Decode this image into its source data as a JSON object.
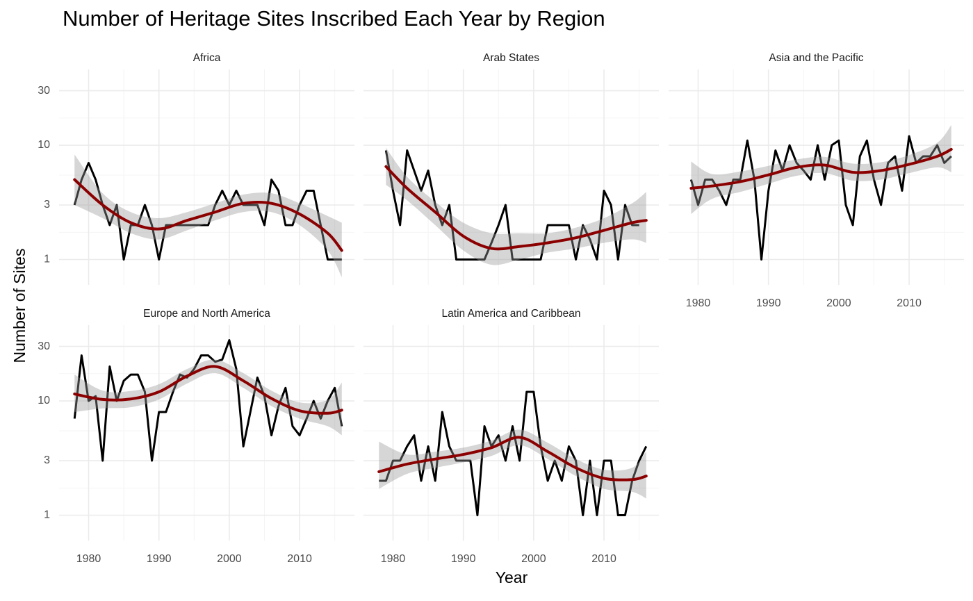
{
  "chart_data": {
    "type": "line",
    "title": "Number of Heritage Sites Inscribed Each Year by Region",
    "x_label": "Year",
    "y_label": "Number of Sites",
    "log_scale": true,
    "grid": true,
    "xlim": [
      1975.8,
      2017.8
    ],
    "xticks": [
      1980,
      1990,
      2000,
      2010
    ],
    "ylim": [
      0.6,
      46
    ],
    "yticks": [
      1,
      3,
      10,
      30
    ],
    "line_color": "#000000",
    "smooth_color": "#8b0000",
    "band_color": "#999999",
    "facets": [
      {
        "title": "Africa",
        "x": [
          1978,
          1979,
          1980,
          1981,
          1982,
          1983,
          1984,
          1985,
          1986,
          1987,
          1988,
          1989,
          1990,
          1991,
          1992,
          1993,
          1994,
          1995,
          1996,
          1997,
          1998,
          1999,
          2000,
          2001,
          2002,
          2003,
          2004,
          2005,
          2006,
          2007,
          2008,
          2009,
          2010,
          2011,
          2012,
          2013,
          2014,
          2015,
          2016
        ],
        "values": [
          3,
          5,
          7,
          5,
          3,
          2,
          3,
          1,
          2,
          2,
          3,
          2,
          1,
          2,
          2,
          2,
          2,
          2,
          2,
          2,
          3,
          4,
          3,
          4,
          3,
          3,
          3,
          2,
          5,
          4,
          2,
          2,
          3,
          4,
          4,
          2,
          1,
          1,
          1
        ],
        "smooth": {
          "x": [
            1978,
            1982,
            1986,
            1990,
            1994,
            1998,
            2002,
            2006,
            2010,
            2014,
            2016
          ],
          "fit": [
            5.0,
            3.0,
            2.1,
            1.85,
            2.2,
            2.6,
            3.1,
            3.1,
            2.5,
            1.7,
            1.2
          ],
          "lower": [
            3.0,
            2.3,
            1.7,
            1.5,
            1.8,
            2.2,
            2.6,
            2.6,
            2.0,
            1.2,
            0.7
          ],
          "upper": [
            8.3,
            3.8,
            2.6,
            2.3,
            2.6,
            3.1,
            3.7,
            3.8,
            3.1,
            2.4,
            2.1
          ]
        }
      },
      {
        "title": "Arab States",
        "x": [
          1979,
          1980,
          1981,
          1982,
          1983,
          1984,
          1985,
          1986,
          1987,
          1988,
          1989,
          1990,
          1991,
          1992,
          1993,
          1994,
          1995,
          1996,
          1997,
          1998,
          1999,
          2000,
          2001,
          2002,
          2003,
          2004,
          2005,
          2006,
          2007,
          2008,
          2009,
          2010,
          2011,
          2012,
          2013,
          2014,
          2015
        ],
        "values": [
          9,
          4,
          2,
          9,
          6,
          4,
          6,
          3,
          2,
          3,
          1,
          1,
          1,
          1,
          1,
          1.4,
          2,
          3,
          1,
          1,
          1,
          1,
          1,
          2,
          2,
          2,
          2,
          1,
          2,
          1.5,
          1,
          4,
          3,
          1,
          3,
          2,
          2
        ],
        "smooth": {
          "x": [
            1979,
            1982,
            1986,
            1990,
            1994,
            1998,
            2002,
            2006,
            2010,
            2014,
            2016
          ],
          "fit": [
            6.5,
            4.2,
            2.6,
            1.6,
            1.25,
            1.3,
            1.4,
            1.55,
            1.8,
            2.1,
            2.2
          ],
          "lower": [
            4.5,
            3.3,
            2.0,
            1.2,
            0.9,
            1.0,
            1.15,
            1.25,
            1.4,
            1.5,
            1.4
          ],
          "upper": [
            9.5,
            5.3,
            3.2,
            2.1,
            1.7,
            1.7,
            1.7,
            1.9,
            2.3,
            3.1,
            3.9
          ]
        }
      },
      {
        "title": "Asia and the Pacific",
        "x": [
          1979,
          1980,
          1981,
          1982,
          1983,
          1984,
          1985,
          1986,
          1987,
          1988,
          1989,
          1990,
          1991,
          1992,
          1993,
          1994,
          1995,
          1996,
          1997,
          1998,
          1999,
          2000,
          2001,
          2002,
          2003,
          2004,
          2005,
          2006,
          2007,
          2008,
          2009,
          2010,
          2011,
          2012,
          2013,
          2014,
          2015,
          2016
        ],
        "values": [
          5,
          3,
          5,
          5,
          4,
          3,
          5,
          5,
          11,
          5,
          1,
          4,
          9,
          6,
          10,
          7,
          6,
          5,
          10,
          5,
          10,
          11,
          3,
          2,
          8,
          11,
          5,
          3,
          7,
          8,
          4,
          12,
          7,
          8,
          8,
          10,
          7,
          8
        ],
        "smooth": {
          "x": [
            1979,
            1982,
            1986,
            1990,
            1994,
            1998,
            2002,
            2006,
            2010,
            2014,
            2016
          ],
          "fit": [
            4.2,
            4.4,
            4.8,
            5.5,
            6.4,
            6.7,
            5.8,
            6.0,
            6.8,
            8.0,
            9.2
          ],
          "lower": [
            2.5,
            3.4,
            3.9,
            4.6,
            5.4,
            5.7,
            4.9,
            5.0,
            5.7,
            6.4,
            5.8
          ],
          "upper": [
            7.2,
            5.6,
            5.9,
            6.6,
            7.5,
            7.9,
            6.9,
            7.1,
            8.2,
            10.5,
            15
          ]
        }
      },
      {
        "title": "Europe and North America",
        "x": [
          1978,
          1979,
          1980,
          1981,
          1982,
          1983,
          1984,
          1985,
          1986,
          1987,
          1988,
          1989,
          1990,
          1991,
          1992,
          1993,
          1994,
          1995,
          1996,
          1997,
          1998,
          1999,
          2000,
          2001,
          2002,
          2003,
          2004,
          2005,
          2006,
          2007,
          2008,
          2009,
          2010,
          2011,
          2012,
          2013,
          2014,
          2015,
          2016
        ],
        "values": [
          7,
          25,
          10,
          11,
          3,
          20,
          10,
          15,
          17,
          17,
          12,
          3,
          8,
          8,
          12,
          17,
          16,
          19,
          25,
          25,
          22,
          23,
          34,
          19,
          4,
          8,
          16,
          11,
          5,
          9,
          13,
          6,
          5,
          7,
          10,
          7,
          10,
          13,
          6
        ],
        "smooth": {
          "x": [
            1978,
            1982,
            1986,
            1990,
            1994,
            1998,
            2002,
            2006,
            2010,
            2014,
            2016
          ],
          "fit": [
            11.5,
            10.3,
            10.4,
            12.0,
            16.5,
            20,
            15,
            10.5,
            8.2,
            7.8,
            8.3
          ],
          "lower": [
            8,
            8.6,
            8.8,
            10.3,
            14.2,
            17.5,
            13,
            9,
            7,
            6,
            5
          ],
          "upper": [
            17,
            12.3,
            12.2,
            14,
            19,
            23,
            17.5,
            12.3,
            9.7,
            10.2,
            14.5
          ]
        }
      },
      {
        "title": "Latin America and Caribbean",
        "x": [
          1978,
          1979,
          1980,
          1981,
          1982,
          1983,
          1984,
          1985,
          1986,
          1987,
          1988,
          1989,
          1990,
          1991,
          1992,
          1993,
          1994,
          1995,
          1996,
          1997,
          1998,
          1999,
          2000,
          2001,
          2002,
          2003,
          2004,
          2005,
          2006,
          2007,
          2008,
          2009,
          2010,
          2011,
          2012,
          2013,
          2014,
          2015,
          2016
        ],
        "values": [
          2,
          2,
          3,
          3,
          4,
          5,
          2,
          4,
          2,
          8,
          4,
          3,
          3,
          3,
          1,
          6,
          4,
          5,
          3,
          6,
          3,
          12,
          12,
          4,
          2,
          3,
          2,
          4,
          3,
          1,
          3,
          1,
          3,
          3,
          1,
          1,
          2,
          3,
          4
        ],
        "smooth": {
          "x": [
            1978,
            1982,
            1986,
            1990,
            1994,
            1998,
            2002,
            2006,
            2010,
            2014,
            2016
          ],
          "fit": [
            2.4,
            2.8,
            3.1,
            3.4,
            3.9,
            4.8,
            3.6,
            2.6,
            2.1,
            2.05,
            2.2
          ],
          "lower": [
            1.7,
            2.3,
            2.6,
            2.9,
            3.3,
            4.1,
            3.1,
            2.2,
            1.7,
            1.6,
            1.4
          ],
          "upper": [
            4.4,
            3.4,
            3.6,
            3.9,
            4.5,
            5.6,
            4.3,
            3.1,
            2.5,
            2.6,
            3.6
          ]
        }
      }
    ]
  }
}
